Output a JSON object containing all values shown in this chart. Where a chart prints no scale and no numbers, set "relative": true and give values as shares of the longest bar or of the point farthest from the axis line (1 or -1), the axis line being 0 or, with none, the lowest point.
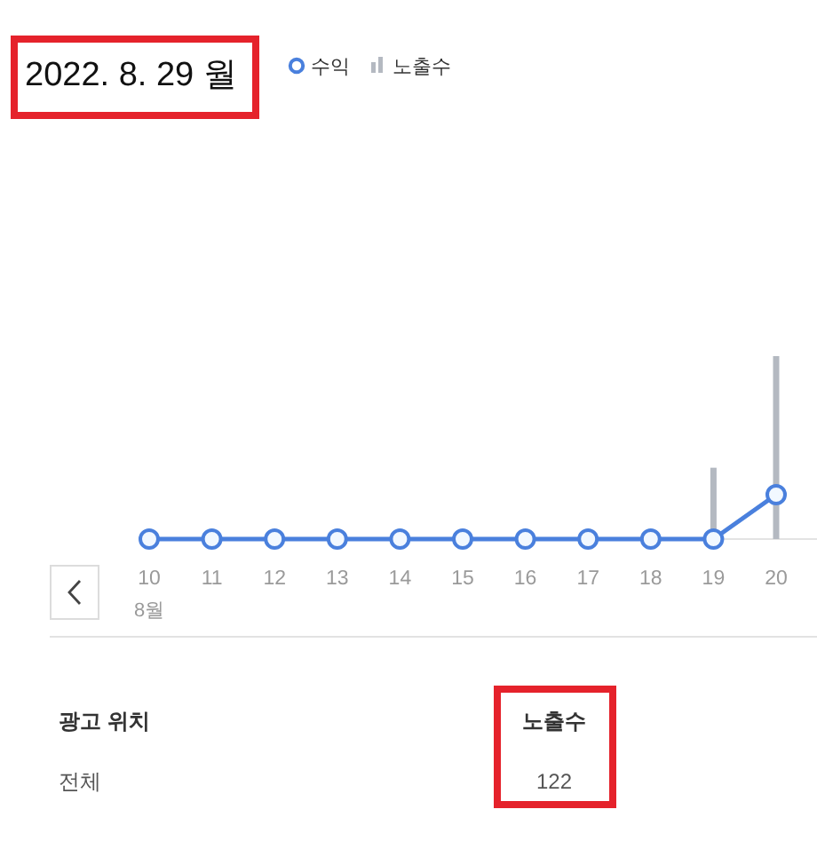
{
  "chart_data": [
    {
      "type": "line",
      "title": "2022. 8. 29 월",
      "categories": [
        "10",
        "11",
        "12",
        "13",
        "14",
        "15",
        "16",
        "17",
        "18",
        "19",
        "20"
      ],
      "series": [
        {
          "name": "수익",
          "type": "line",
          "axis": "y2",
          "color": "#4a80dd",
          "values": [
            0,
            0,
            0,
            0,
            0,
            0,
            0,
            0,
            0,
            0,
            1
          ]
        },
        {
          "name": "노출수",
          "type": "bar",
          "color": "#b4b9c1",
          "values": [
            null,
            null,
            null,
            null,
            null,
            null,
            null,
            null,
            null,
            0.39,
            1
          ]
        }
      ],
      "relative": true,
      "legend": "top",
      "marker": "circle",
      "annotations": [
        "8월"
      ]
    },
    {
      "type": "other",
      "annotations": [
        "광고 위치",
        "노출수",
        "전체",
        "122"
      ]
    }
  ]
}
